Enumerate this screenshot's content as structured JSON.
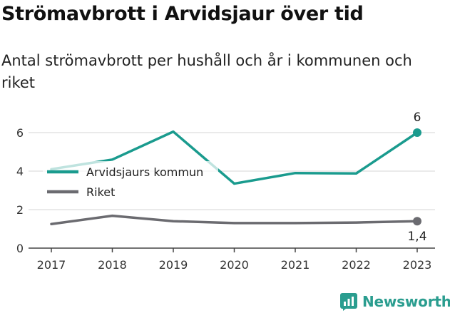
{
  "title": "Strömavbrott i Arvidsjaur över tid",
  "subtitle": "Antal strömavbrott per hushåll och år i kommunen och riket",
  "brand": "Newsworthy",
  "colors": {
    "kommun": "#1a9b8e",
    "riket": "#6b6b70",
    "grid": "#e3e3e3",
    "axis": "#444444"
  },
  "chart_data": {
    "type": "line",
    "x": [
      2017,
      2018,
      2019,
      2020,
      2021,
      2022,
      2023
    ],
    "ylim": [
      0,
      7
    ],
    "yticks": [
      0,
      2,
      4,
      6
    ],
    "grid": true,
    "legend": "left, mid",
    "series": [
      {
        "name": "Arvidsjaurs kommun",
        "values": [
          4.1,
          4.6,
          6.05,
          3.35,
          3.9,
          3.88,
          6.0
        ],
        "end_label": "6"
      },
      {
        "name": "Riket",
        "values": [
          1.25,
          1.68,
          1.4,
          1.3,
          1.3,
          1.33,
          1.4
        ],
        "end_label": "1,4"
      }
    ]
  }
}
